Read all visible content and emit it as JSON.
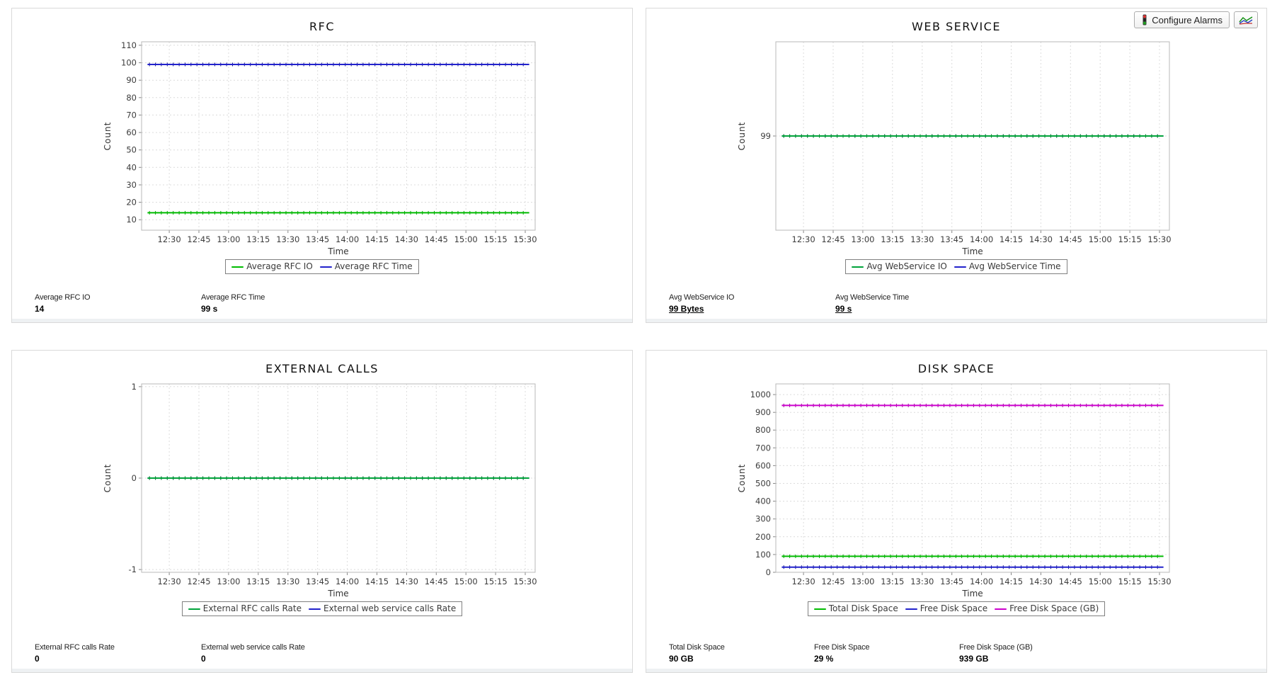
{
  "toolbar": {
    "configure_alarms": "Configure Alarms"
  },
  "panels": [
    {
      "id": "rfc",
      "title": "RFC",
      "stats": [
        {
          "label": "Average RFC IO",
          "value": "14",
          "link": false
        },
        {
          "label": "Average RFC Time",
          "value": "99 s",
          "link": false
        }
      ]
    },
    {
      "id": "web-service",
      "title": "WEB SERVICE",
      "stats": [
        {
          "label": "Avg WebService IO",
          "value": "99 Bytes",
          "link": true
        },
        {
          "label": "Avg WebService Time",
          "value": "99 s",
          "link": true
        }
      ]
    },
    {
      "id": "external-calls",
      "title": "EXTERNAL CALLS",
      "stats": [
        {
          "label": "External RFC calls Rate",
          "value": "0",
          "link": false
        },
        {
          "label": "External web service calls Rate",
          "value": "0",
          "link": false
        }
      ]
    },
    {
      "id": "disk-space",
      "title": "DISK SPACE",
      "stats": [
        {
          "label": "Total Disk Space",
          "value": "90 GB",
          "link": false
        },
        {
          "label": "Free Disk Space",
          "value": "29 %",
          "link": false
        },
        {
          "label": "Free Disk Space (GB)",
          "value": "939 GB",
          "link": false
        }
      ]
    }
  ],
  "chart_data": [
    {
      "id": "rfc",
      "type": "line",
      "title": "RFC",
      "xlabel": "Time",
      "ylabel": "Count",
      "x_ticks": [
        "12:30",
        "12:45",
        "13:00",
        "13:15",
        "13:30",
        "13:45",
        "14:00",
        "14:15",
        "14:30",
        "14:45",
        "15:00",
        "15:15",
        "15:30"
      ],
      "x_tick_step_minutes": 15,
      "x_domain_minutes": [
        736,
        935
      ],
      "series_time_range_minutes": [
        739,
        932
      ],
      "y_ticks": [
        10,
        20,
        30,
        40,
        50,
        60,
        70,
        80,
        90,
        100,
        110
      ],
      "ylim": [
        4,
        112
      ],
      "grid": "dashed",
      "legend_position": "bottom",
      "series": [
        {
          "name": "Average RFC IO",
          "color": "#00bb00",
          "marker_color": "#009900",
          "value": 14
        },
        {
          "name": "Average RFC Time",
          "color": "#2222cc",
          "marker_color": "#111188",
          "value": 99
        }
      ]
    },
    {
      "id": "web-service",
      "type": "line",
      "title": "WEB SERVICE",
      "xlabel": "Time",
      "ylabel": "Count",
      "x_ticks": [
        "12:30",
        "12:45",
        "13:00",
        "13:15",
        "13:30",
        "13:45",
        "14:00",
        "14:15",
        "14:30",
        "14:45",
        "15:00",
        "15:15",
        "15:30"
      ],
      "x_tick_step_minutes": 15,
      "x_domain_minutes": [
        736,
        935
      ],
      "series_time_range_minutes": [
        739,
        932
      ],
      "y_ticks": [
        99
      ],
      "ylim": [
        98,
        100
      ],
      "grid": "dashed",
      "legend_position": "bottom",
      "series": [
        {
          "name": "Avg WebService IO",
          "color": "#00a33a",
          "marker_color": "#007722",
          "value": 99
        },
        {
          "name": "Avg WebService Time",
          "color": "#2222cc",
          "marker_color": "#111188",
          "value": 99
        }
      ]
    },
    {
      "id": "external-calls",
      "type": "line",
      "title": "EXTERNAL CALLS",
      "xlabel": "Time",
      "ylabel": "Count",
      "x_ticks": [
        "12:30",
        "12:45",
        "13:00",
        "13:15",
        "13:30",
        "13:45",
        "14:00",
        "14:15",
        "14:30",
        "14:45",
        "15:00",
        "15:15",
        "15:30"
      ],
      "x_tick_step_minutes": 15,
      "x_domain_minutes": [
        736,
        935
      ],
      "series_time_range_minutes": [
        739,
        932
      ],
      "y_ticks": [
        1,
        0,
        -1
      ],
      "ylim": [
        -1.03,
        1.03
      ],
      "grid": "dashed",
      "legend_position": "bottom",
      "series": [
        {
          "name": "External RFC calls Rate",
          "color": "#00a33a",
          "marker_color": "#007722",
          "value": 0
        },
        {
          "name": "External web service calls Rate",
          "color": "#2222cc",
          "marker_color": "#111188",
          "value": 0
        }
      ]
    },
    {
      "id": "disk-space",
      "type": "line",
      "title": "DISK SPACE",
      "xlabel": "Time",
      "ylabel": "Count",
      "x_ticks": [
        "12:30",
        "12:45",
        "13:00",
        "13:15",
        "13:30",
        "13:45",
        "14:00",
        "14:15",
        "14:30",
        "14:45",
        "15:00",
        "15:15",
        "15:30"
      ],
      "x_tick_step_minutes": 15,
      "x_domain_minutes": [
        736,
        935
      ],
      "series_time_range_minutes": [
        739,
        932
      ],
      "y_ticks": [
        0,
        100,
        200,
        300,
        400,
        500,
        600,
        700,
        800,
        900,
        1000
      ],
      "ylim": [
        0,
        1060
      ],
      "grid": "dashed",
      "legend_position": "bottom",
      "series": [
        {
          "name": "Total Disk Space",
          "color": "#00bb00",
          "marker_color": "#009900",
          "value": 90
        },
        {
          "name": "Free Disk Space",
          "color": "#2222cc",
          "marker_color": "#111188",
          "value": 29
        },
        {
          "name": "Free Disk Space (GB)",
          "color": "#cc00cc",
          "marker_color": "#990099",
          "value": 939
        }
      ]
    }
  ]
}
